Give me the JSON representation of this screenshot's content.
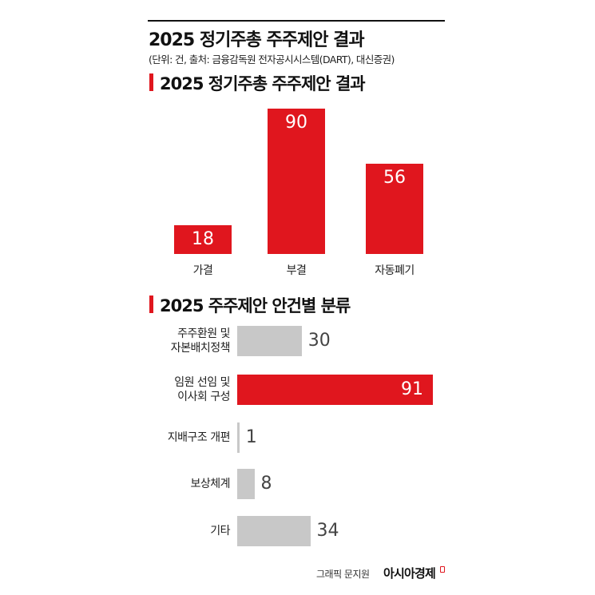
{
  "header": {
    "title": "2025 정기주총 주주제안 결과",
    "subtitle": "(단위: 건, 출처: 금융감독원 전자공시시스템(DART), 대신증권)"
  },
  "chart_data": [
    {
      "type": "bar",
      "title": "2025 정기주총 주주제안 결과",
      "categories": [
        "가결",
        "부결",
        "자동폐기"
      ],
      "values": [
        18,
        90,
        56
      ],
      "color": "#e0161e"
    },
    {
      "type": "hbar",
      "title": "2025 주주제안 안건별 분류",
      "categories": [
        "주주환원 및\n자본배치정책",
        "임원 선임 및\n이사회 구성",
        "지배구조 개편",
        "보상체계",
        "기타"
      ],
      "values": [
        30,
        91,
        1,
        8,
        34
      ],
      "colors": [
        "#c8c8c8",
        "#e0161e",
        "#c8c8c8",
        "#c8c8c8",
        "#c8c8c8"
      ]
    }
  ],
  "footer": {
    "credit": "그래픽 문지원",
    "brand": "아시아경제"
  }
}
